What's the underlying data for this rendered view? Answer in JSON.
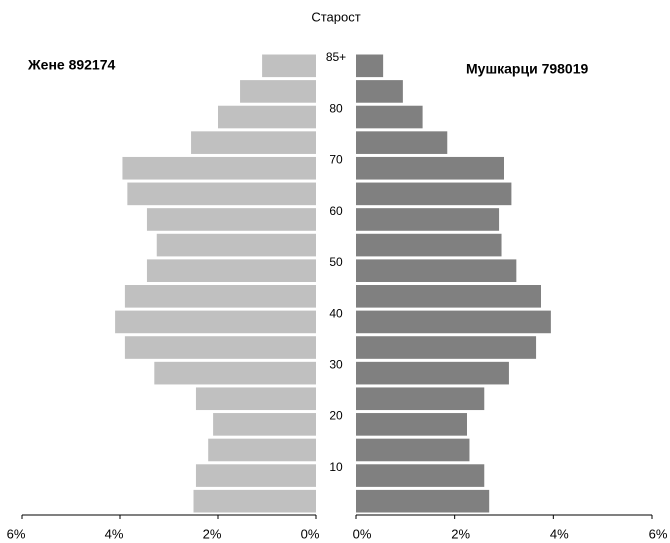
{
  "chart_data": {
    "type": "pyramid",
    "title": "Старост",
    "categories": [
      null,
      "10",
      null,
      "20",
      null,
      "30",
      null,
      "40",
      null,
      "50",
      null,
      "60",
      null,
      "70",
      null,
      "80",
      null,
      "85+"
    ],
    "series": [
      {
        "name": "Жене 892174",
        "color": "#c0c0c0",
        "values": [
          2.5,
          2.45,
          2.2,
          2.1,
          2.45,
          3.3,
          3.9,
          4.1,
          3.9,
          3.45,
          3.25,
          3.45,
          3.85,
          3.95,
          2.55,
          2.0,
          1.55,
          1.1
        ]
      },
      {
        "name": "Мушкарци 798019",
        "color": "#808080",
        "values": [
          2.7,
          2.6,
          2.3,
          2.25,
          2.6,
          3.1,
          3.65,
          3.95,
          3.75,
          3.25,
          2.95,
          2.9,
          3.15,
          3.0,
          1.85,
          1.35,
          0.95,
          0.55
        ]
      }
    ],
    "xlim": [
      0,
      6
    ],
    "xticks": [
      {
        "value": 0,
        "label": "0%"
      },
      {
        "value": 2,
        "label": "2%"
      },
      {
        "value": 4,
        "label": "4%"
      },
      {
        "value": 6,
        "label": "6%"
      }
    ]
  }
}
